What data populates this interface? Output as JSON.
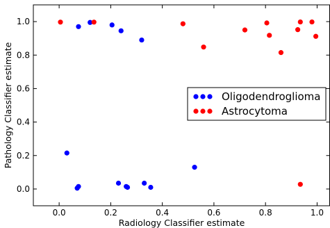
{
  "chart_data": {
    "type": "scatter",
    "xlabel": "Radiology Classifier estimate",
    "ylabel": "Pathology Classifier estimate",
    "xlim": [
      -0.1,
      1.05
    ],
    "ylim": [
      -0.1,
      1.1
    ],
    "x_ticks": [
      0.0,
      0.2,
      0.4,
      0.6,
      0.8,
      1.0
    ],
    "x_tick_labels": [
      "0.0",
      "0.2",
      "0.4",
      "0.6",
      "0.8",
      "1.0"
    ],
    "y_ticks": [
      0.0,
      0.2,
      0.4,
      0.6,
      0.8,
      1.0
    ],
    "y_tick_labels": [
      "0.0",
      "0.2",
      "0.4",
      "0.6",
      "0.8",
      "1.0"
    ],
    "grid": false,
    "legend_position": "center-right",
    "series": [
      {
        "name": "Oligodendroglioma",
        "color": "#0000ff",
        "points": [
          [
            0.075,
            0.97
          ],
          [
            0.12,
            0.995
          ],
          [
            0.205,
            0.98
          ],
          [
            0.24,
            0.945
          ],
          [
            0.32,
            0.89
          ],
          [
            0.03,
            0.215
          ],
          [
            0.525,
            0.13
          ],
          [
            0.07,
            0.005
          ],
          [
            0.075,
            0.015
          ],
          [
            0.23,
            0.035
          ],
          [
            0.26,
            0.015
          ],
          [
            0.265,
            0.01
          ],
          [
            0.33,
            0.035
          ],
          [
            0.355,
            0.01
          ]
        ]
      },
      {
        "name": "Astrocytoma",
        "color": "#ff0000",
        "points": [
          [
            0.005,
            0.997
          ],
          [
            0.135,
            0.997
          ],
          [
            0.48,
            0.987
          ],
          [
            0.56,
            0.848
          ],
          [
            0.72,
            0.95
          ],
          [
            0.805,
            0.992
          ],
          [
            0.815,
            0.918
          ],
          [
            0.86,
            0.815
          ],
          [
            0.925,
            0.952
          ],
          [
            0.935,
            0.998
          ],
          [
            0.98,
            0.998
          ],
          [
            0.995,
            0.912
          ],
          [
            0.935,
            0.028
          ]
        ]
      }
    ]
  }
}
